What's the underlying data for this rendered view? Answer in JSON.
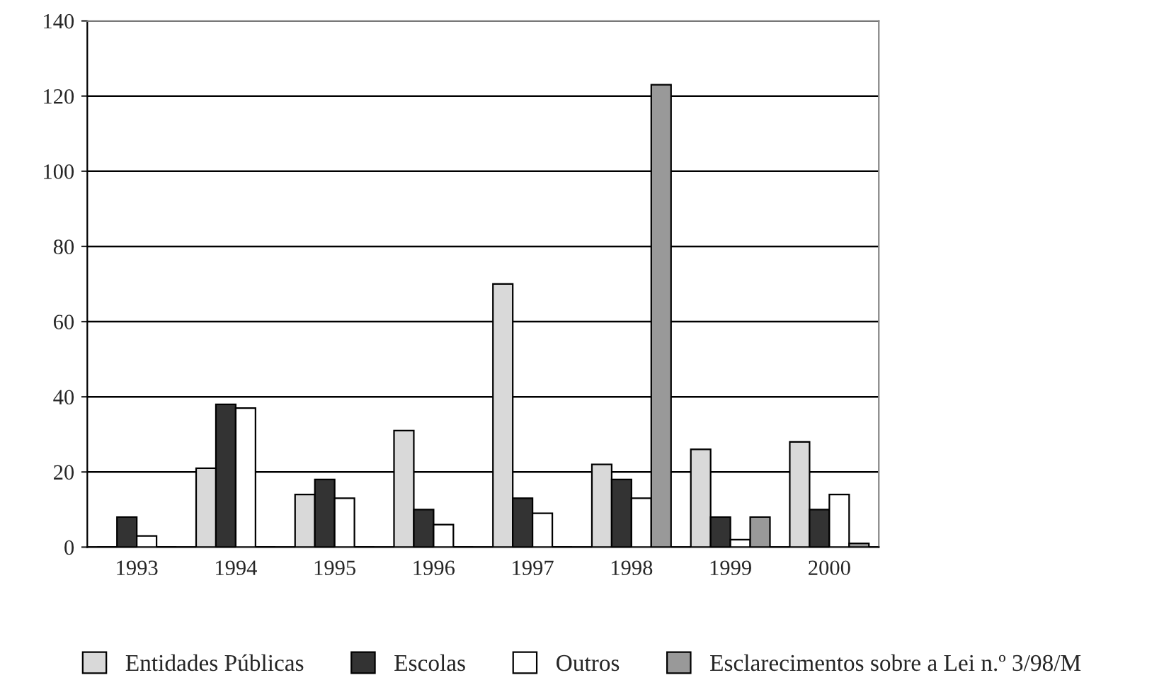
{
  "chart_data": {
    "type": "bar",
    "categories": [
      "1993",
      "1994",
      "1995",
      "1996",
      "1997",
      "1998",
      "1999",
      "2000"
    ],
    "series": [
      {
        "name": "Entidades Públicas",
        "color": "#d9d9d9",
        "values": [
          0,
          21,
          14,
          31,
          70,
          22,
          26,
          28
        ]
      },
      {
        "name": "Escolas",
        "color": "#333333",
        "values": [
          8,
          38,
          18,
          10,
          13,
          18,
          8,
          10
        ]
      },
      {
        "name": "Outros",
        "color": "#ffffff",
        "values": [
          3,
          37,
          13,
          6,
          9,
          13,
          2,
          14
        ]
      },
      {
        "name": "Esclarecimentos sobre a Lei n.º 3/98/M",
        "color": "#999999",
        "values": [
          0,
          0,
          0,
          0,
          0,
          123,
          8,
          1
        ]
      }
    ],
    "ylim": [
      0,
      140
    ],
    "yticks": [
      0,
      20,
      40,
      60,
      80,
      100,
      120,
      140
    ],
    "grid": "y",
    "legend": "bottom"
  }
}
